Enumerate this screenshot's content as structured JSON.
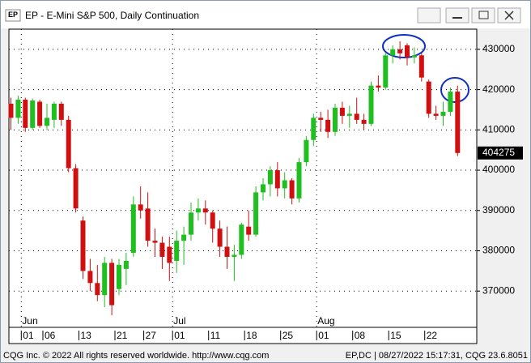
{
  "window": {
    "title": "EP - E-Mini S&P 500, Daily Continuation",
    "icon": "EP"
  },
  "footer": {
    "left": "CQG Inc. © 2022 All rights reserved worldwide. http://www.cqg.com",
    "right": "EP,DC | 08/27/2022 15:17:31, CQG 23.6.8051"
  },
  "chart_data": {
    "type": "candlestick",
    "categories": [
      null,
      null,
      "01",
      null,
      null,
      "06",
      null,
      null,
      null,
      null,
      "13",
      null,
      null,
      null,
      null,
      "21",
      null,
      null,
      null,
      "27",
      null,
      null,
      null,
      "01",
      null,
      null,
      null,
      null,
      "11",
      null,
      null,
      null,
      null,
      "18",
      null,
      null,
      null,
      null,
      "25",
      null,
      null,
      null,
      null,
      "01",
      null,
      null,
      null,
      null,
      "08",
      null,
      null,
      null,
      null,
      "15",
      null,
      null,
      null,
      null,
      "22",
      null,
      null,
      null,
      null
    ],
    "months": [
      null,
      null,
      "Jun",
      null,
      null,
      null,
      null,
      null,
      null,
      null,
      null,
      null,
      null,
      null,
      null,
      null,
      null,
      null,
      null,
      null,
      null,
      null,
      null,
      "Jul",
      null,
      null,
      null,
      null,
      null,
      null,
      null,
      null,
      null,
      null,
      null,
      null,
      null,
      null,
      null,
      null,
      null,
      null,
      null,
      "Aug",
      null,
      null,
      null,
      null,
      null,
      null,
      null,
      null,
      null,
      null,
      null,
      null,
      null,
      null,
      null,
      null,
      null,
      null,
      null
    ],
    "open": [
      416500,
      413000,
      417500,
      410500,
      417000,
      411000,
      412500,
      416500,
      412500,
      400500,
      387500,
      375000,
      372000,
      369000,
      377000,
      370500,
      375500,
      379500,
      391500,
      390500,
      382500,
      382000,
      381000,
      377500,
      382500,
      384000,
      389500,
      390500,
      389500,
      385500,
      381000,
      378500,
      379000,
      386000,
      384000,
      394500,
      396500,
      400000,
      395500,
      397500,
      393000,
      402000,
      407500,
      413000,
      412500,
      409500,
      415500,
      413500,
      414000,
      412500,
      411500,
      421000,
      420500,
      428500,
      430000,
      431000,
      428000,
      428500,
      422000,
      414000,
      413500,
      414500,
      419500
    ],
    "high": [
      418000,
      418500,
      418000,
      417800,
      417500,
      416500,
      417000,
      417000,
      413500,
      401500,
      388500,
      378000,
      376500,
      378500,
      378000,
      378000,
      379500,
      393500,
      396000,
      394500,
      385500,
      383500,
      383500,
      385000,
      386000,
      392000,
      393000,
      392500,
      390000,
      387500,
      386000,
      381500,
      387000,
      390000,
      396000,
      398000,
      401000,
      402000,
      399500,
      398000,
      403000,
      408500,
      414000,
      414500,
      415000,
      416500,
      417000,
      416000,
      418000,
      414000,
      422000,
      423500,
      429000,
      431000,
      432000,
      431500,
      430500,
      429000,
      422500,
      416000,
      417000,
      420500,
      421000
    ],
    "low": [
      410000,
      411500,
      409500,
      410000,
      410500,
      410000,
      410500,
      411000,
      399500,
      389500,
      373000,
      370000,
      367500,
      366000,
      364000,
      369000,
      371500,
      378500,
      388000,
      381000,
      378500,
      375500,
      372500,
      374500,
      376500,
      382500,
      387500,
      386500,
      382000,
      378500,
      375500,
      372500,
      378000,
      382500,
      383500,
      392500,
      393500,
      393500,
      393000,
      391500,
      392000,
      401000,
      406000,
      409500,
      408000,
      408500,
      411500,
      410500,
      411500,
      410000,
      411000,
      419500,
      420000,
      426500,
      427500,
      426000,
      426500,
      422000,
      413000,
      412500,
      411000,
      413500,
      403500
    ],
    "close": [
      413000,
      417500,
      410500,
      417300,
      411000,
      413000,
      416500,
      412500,
      400500,
      390500,
      375000,
      372000,
      369000,
      377000,
      366500,
      376500,
      377500,
      391500,
      390000,
      382500,
      382000,
      378500,
      377000,
      382500,
      384000,
      389500,
      390500,
      389500,
      385500,
      381000,
      378500,
      379000,
      386500,
      384000,
      394500,
      396500,
      400000,
      395500,
      397500,
      393000,
      402000,
      407500,
      413000,
      412500,
      409500,
      415500,
      413500,
      414000,
      412500,
      411500,
      421000,
      420500,
      428500,
      430000,
      429000,
      428000,
      428500,
      423000,
      414000,
      413500,
      414500,
      419500,
      404275
    ],
    "up_color": "#1fbf1f",
    "down_color": "#d01010",
    "ylim": [
      361000,
      435000
    ],
    "yticks": [
      370000,
      380000,
      390000,
      400000,
      410000,
      420000,
      430000
    ],
    "grid": true
  }
}
